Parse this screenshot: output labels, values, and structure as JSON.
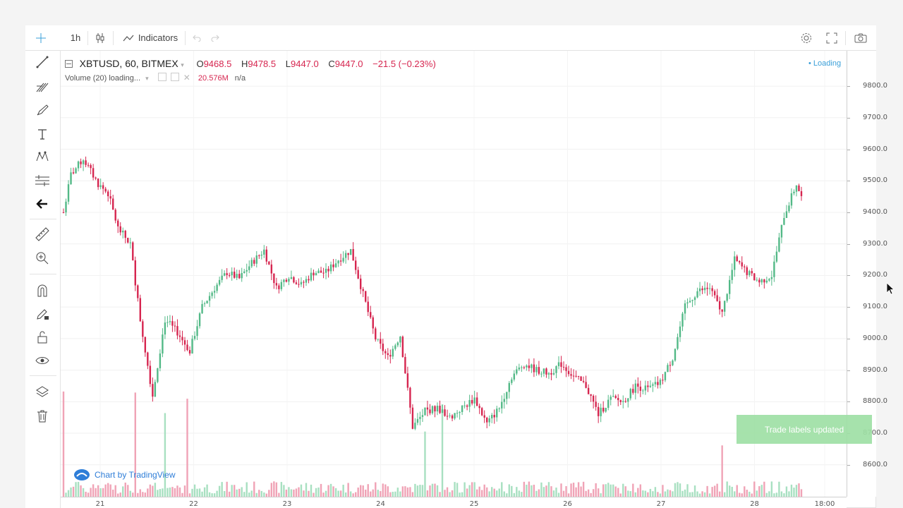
{
  "toolbar": {
    "interval": "1h",
    "indicators_label": "Indicators"
  },
  "legend": {
    "symbol": "XBTUSD, 60, BITMEX",
    "open_label": "O",
    "open": "9468.5",
    "high_label": "H",
    "high": "9478.5",
    "low_label": "L",
    "low": "9447.0",
    "close_label": "C",
    "close": "9447.0",
    "change": "−21.5 (−0.23%)",
    "volume_label": "Volume (20) loading...",
    "volume_value": "20.576M",
    "volume_na": "n/a"
  },
  "status": {
    "loading": "Loading"
  },
  "toast": {
    "text": "Trade labels updated"
  },
  "watermark": {
    "text": "Chart by TradingView"
  },
  "colors": {
    "up": "#53b987",
    "down": "#d6254f",
    "up_vol": "#a8e0c1",
    "down_vol": "#f0a3b6",
    "accent": "#3a9fd8"
  },
  "chart_data": {
    "type": "candlestick",
    "symbol": "XBTUSD",
    "y_ticks": [
      "9800.0",
      "9700.0",
      "9600.0",
      "9500.0",
      "9400.0",
      "9300.0",
      "9200.0",
      "9100.0",
      "9000.0",
      "8900.0",
      "8800.0",
      "8700.0",
      "8600.0"
    ],
    "x_ticks": [
      "21",
      "22",
      "23",
      "24",
      "25",
      "26",
      "27",
      "28",
      "18:00"
    ],
    "ylim": [
      8557,
      9827
    ],
    "close_path": [
      [
        0,
        9400
      ],
      [
        3,
        9520
      ],
      [
        8,
        9570
      ],
      [
        14,
        9490
      ],
      [
        18,
        9460
      ],
      [
        22,
        9350
      ],
      [
        27,
        9300
      ],
      [
        31,
        9060
      ],
      [
        36,
        8820
      ],
      [
        41,
        9060
      ],
      [
        46,
        9020
      ],
      [
        51,
        8960
      ],
      [
        56,
        9100
      ],
      [
        61,
        9160
      ],
      [
        66,
        9210
      ],
      [
        71,
        9190
      ],
      [
        76,
        9240
      ],
      [
        81,
        9280
      ],
      [
        86,
        9160
      ],
      [
        91,
        9200
      ],
      [
        96,
        9170
      ],
      [
        101,
        9210
      ],
      [
        106,
        9210
      ],
      [
        111,
        9250
      ],
      [
        116,
        9280
      ],
      [
        121,
        9140
      ],
      [
        126,
        9000
      ],
      [
        131,
        8940
      ],
      [
        136,
        9010
      ],
      [
        141,
        8720
      ],
      [
        146,
        8770
      ],
      [
        151,
        8780
      ],
      [
        156,
        8750
      ],
      [
        161,
        8780
      ],
      [
        166,
        8810
      ],
      [
        171,
        8730
      ],
      [
        176,
        8780
      ],
      [
        181,
        8880
      ],
      [
        186,
        8920
      ],
      [
        191,
        8900
      ],
      [
        196,
        8890
      ],
      [
        201,
        8920
      ],
      [
        206,
        8880
      ],
      [
        211,
        8850
      ],
      [
        216,
        8760
      ],
      [
        221,
        8810
      ],
      [
        226,
        8800
      ],
      [
        231,
        8850
      ],
      [
        236,
        8840
      ],
      [
        241,
        8860
      ],
      [
        246,
        8940
      ],
      [
        251,
        9100
      ],
      [
        256,
        9150
      ],
      [
        261,
        9160
      ],
      [
        266,
        9080
      ],
      [
        271,
        9250
      ],
      [
        276,
        9210
      ],
      [
        281,
        9180
      ],
      [
        286,
        9200
      ],
      [
        291,
        9390
      ],
      [
        296,
        9490
      ],
      [
        298,
        9447
      ]
    ],
    "volume_spikes": [
      [
        0,
        20.5
      ],
      [
        29,
        20.3
      ],
      [
        41,
        16.3
      ],
      [
        50,
        19.1
      ],
      [
        146,
        12.7
      ],
      [
        153,
        18
      ],
      [
        266,
        10
      ],
      [
        309,
        10.3
      ]
    ]
  }
}
